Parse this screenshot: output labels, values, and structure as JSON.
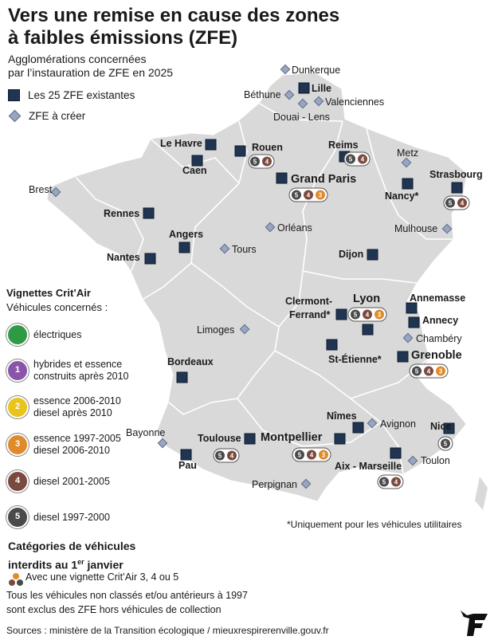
{
  "title_line1": "Vers une remise en cause des zones",
  "title_line2": "à faibles émissions (ZFE)",
  "subtitle_line1": "Agglomérations concernées",
  "subtitle_line2": "par l’instauration de ZFE en 2025",
  "legend": {
    "existing": "Les 25 ZFE existantes",
    "to_create": "ZFE à créer"
  },
  "colors": {
    "land": "#d9d9d9",
    "border": "#ffffff",
    "existing_marker": "#1f3552",
    "planned_marker": "#9aa5c0",
    "critair_5": "#4a4a4a",
    "critair_4": "#7a4a3e",
    "critair_3": "#e08a2a"
  },
  "cities_existing": [
    {
      "name": "Lille",
      "bold": true
    },
    {
      "name": "Reims",
      "bold": true,
      "badges": [
        "5",
        "4"
      ]
    },
    {
      "name": "Rouen",
      "bold": true,
      "badges": [
        "5",
        "4"
      ]
    },
    {
      "name": "Le Havre",
      "bold": true
    },
    {
      "name": "Caen",
      "bold": true
    },
    {
      "name": "Grand Paris",
      "bold": true,
      "large": true,
      "badges": [
        "5",
        "4",
        "3"
      ]
    },
    {
      "name": "Strasbourg",
      "bold": true,
      "badges": [
        "5",
        "4"
      ]
    },
    {
      "name": "Nancy*",
      "bold": true
    },
    {
      "name": "Rennes",
      "bold": true
    },
    {
      "name": "Angers",
      "bold": true
    },
    {
      "name": "Nantes",
      "bold": true
    },
    {
      "name": "Dijon",
      "bold": true
    },
    {
      "name": "Lyon",
      "bold": true,
      "large": true,
      "badges": [
        "5",
        "4",
        "3"
      ]
    },
    {
      "name": "Clermont-Ferrand*",
      "bold": true
    },
    {
      "name": "Annemasse",
      "bold": true
    },
    {
      "name": "Annecy",
      "bold": true
    },
    {
      "name": "Saint-Étienne*",
      "bold": true
    },
    {
      "name": "Grenoble",
      "bold": true,
      "large": true,
      "badges": [
        "5",
        "4",
        "3"
      ]
    },
    {
      "name": "Bordeaux",
      "bold": true
    },
    {
      "name": "Toulouse",
      "bold": true,
      "badges": [
        "5",
        "4"
      ]
    },
    {
      "name": "Pau",
      "bold": true
    },
    {
      "name": "Montpellier",
      "bold": true,
      "large": true,
      "badges": [
        "5",
        "4",
        "3"
      ]
    },
    {
      "name": "Nîmes",
      "bold": true
    },
    {
      "name": "Aix - Marseille",
      "bold": true,
      "badges": [
        "5",
        "4"
      ]
    },
    {
      "name": "Nice",
      "bold": true,
      "badges": [
        "5"
      ]
    }
  ],
  "cities_planned": [
    "Dunkerque",
    "Béthune",
    "Douai - Lens",
    "Valenciennes",
    "Metz",
    "Brest",
    "Orléans",
    "Tours",
    "Mulhouse",
    "Limoges",
    "Chambéry",
    "Avignon",
    "Bayonne",
    "Toulon",
    "Perpignan"
  ],
  "clermont_line1": "Clermont-",
  "clermont_line2": "Ferrand*",
  "saint_etienne_label": "St-Étienne*",
  "vignettes": {
    "heading": "Vignettes Crit’Air",
    "subheading": "Véhicules concernés :",
    "items": [
      {
        "badge": "",
        "color": "#2e9a44",
        "line1": "électriques",
        "line2": ""
      },
      {
        "badge": "1",
        "color": "#8a55a8",
        "line1": "hybrides et essence",
        "line2": "construits après 2010"
      },
      {
        "badge": "2",
        "color": "#e8c41c",
        "line1": "essence 2006-2010",
        "line2": "diesel après 2010"
      },
      {
        "badge": "3",
        "color": "#e08a2a",
        "line1": "essence 1997-2005",
        "line2": "diesel 2006-2010"
      },
      {
        "badge": "4",
        "color": "#7a4a3e",
        "line1": "diesel 2001-2005",
        "line2": ""
      },
      {
        "badge": "5",
        "color": "#4a4a4a",
        "line1": "diesel 1997-2000",
        "line2": ""
      }
    ]
  },
  "categories": {
    "heading_line1": "Catégories de véhicules",
    "heading_pre": "interdits au 1",
    "heading_sup": "er",
    "heading_post": " janvier",
    "line": "Avec une vignette Crit’Air 3, 4 ou 5",
    "note_line1": "Tous les véhicules non classés et/ou antérieurs à 1997",
    "note_line2": "sont exclus des ZFE hors véhicules de collection"
  },
  "footnote": "*Uniquement pour les véhicules utilitaires",
  "sources": "Sources : ministère de la Transition écologique / mieuxrespirerenville.gouv.fr"
}
